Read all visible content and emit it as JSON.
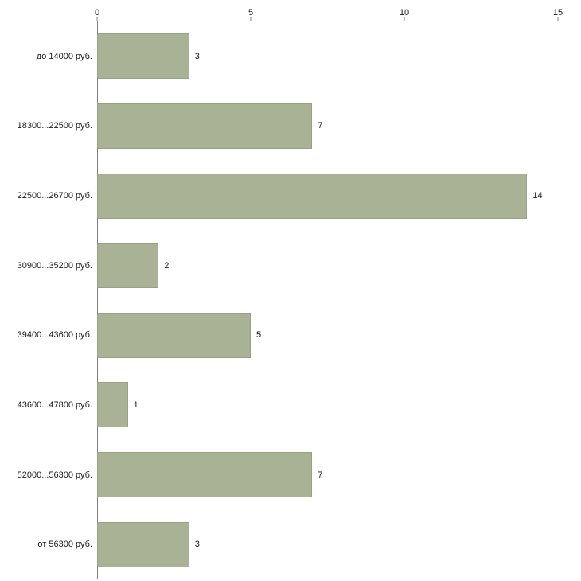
{
  "chart_data": {
    "type": "bar",
    "orientation": "horizontal",
    "title": "",
    "xlabel": "",
    "ylabel": "",
    "categories": [
      "до 14000 руб.",
      "18300...22500 руб.",
      "22500...26700 руб.",
      "30900...35200 руб.",
      "39400...43600 руб.",
      "43600...47800 руб.",
      "52000...56300 руб.",
      "от 56300 руб."
    ],
    "values": [
      3,
      7,
      14,
      2,
      5,
      1,
      7,
      3
    ],
    "value_labels": [
      "3",
      "7",
      "14",
      "2",
      "5",
      "1",
      "7",
      "3"
    ],
    "xlim": [
      0,
      15
    ],
    "x_ticks": [
      "0",
      "5",
      "10",
      "15"
    ],
    "grid": false,
    "legend": "none",
    "bar_color": "#a9b294",
    "bar_border_color": "#97a183",
    "axis_color": "#808080",
    "background_color": "#ffffff"
  }
}
